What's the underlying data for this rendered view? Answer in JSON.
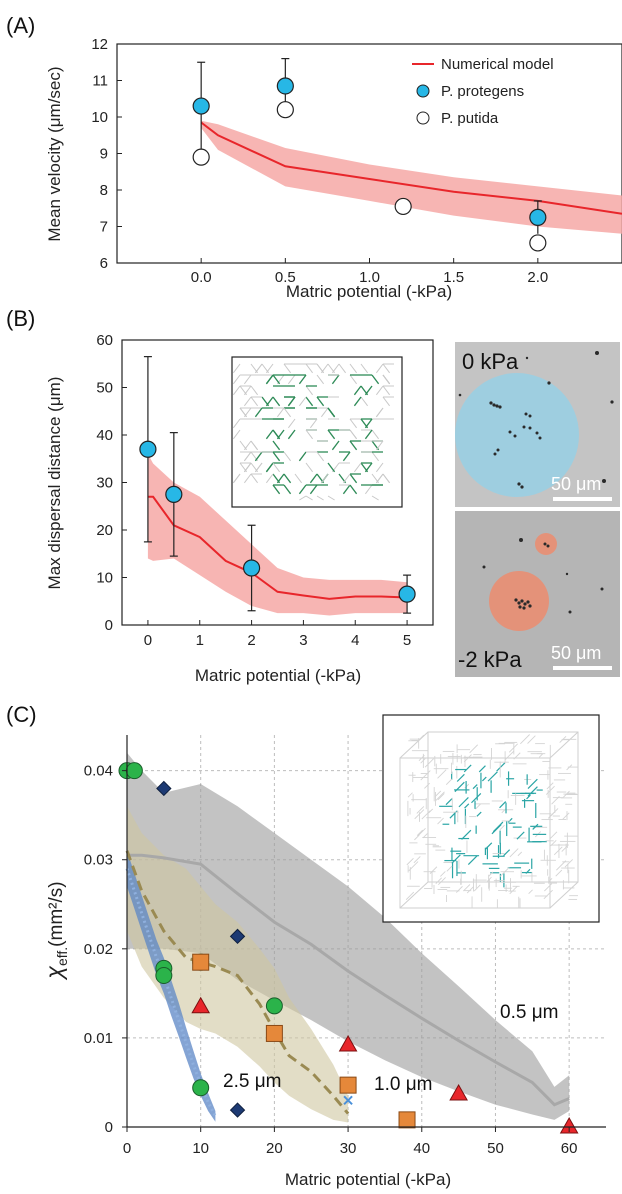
{
  "chart_data": [
    {
      "panel": "(A)",
      "type": "line",
      "xlabel": "Matric potential (-kPa)",
      "ylabel": "Mean velocity (μm/sec)",
      "xlim": [
        -0.5,
        2.5
      ],
      "ylim": [
        6,
        12
      ],
      "xticks": [
        "0.0",
        "0.5",
        "1.0",
        "1.5",
        "2.0"
      ],
      "yticks": [
        "6",
        "7",
        "8",
        "9",
        "10",
        "11",
        "12"
      ],
      "legend_position": "top-right",
      "legend": [
        "Numerical model",
        "P. protegens",
        "P. putida"
      ],
      "model": {
        "name": "Numerical model",
        "color": "#e8262b",
        "x": [
          0.0,
          0.1,
          0.5,
          1.0,
          1.5,
          2.0,
          2.5
        ],
        "y": [
          9.85,
          9.5,
          8.65,
          8.3,
          7.95,
          7.7,
          7.35
        ],
        "lower": [
          9.7,
          9.1,
          8.1,
          7.7,
          7.3,
          7.0,
          6.8
        ],
        "upper": [
          9.9,
          9.8,
          9.15,
          8.7,
          8.35,
          8.1,
          7.85
        ]
      },
      "series": [
        {
          "name": "P. protegens",
          "color": "#27b7e6",
          "x": [
            0.0,
            0.5,
            2.0
          ],
          "y": [
            10.3,
            10.85,
            7.25
          ],
          "err": [
            1.2,
            0.75,
            0.45
          ]
        },
        {
          "name": "P. putida",
          "color": "#ffffff",
          "x": [
            0.0,
            0.5,
            1.2,
            2.0
          ],
          "y": [
            8.9,
            10.2,
            7.55,
            6.55
          ]
        }
      ]
    },
    {
      "panel": "(B)",
      "type": "line",
      "xlabel": "Matric potential (-kPa)",
      "ylabel": "Max dispersal distance (μm)",
      "xlim": [
        -0.5,
        5.5
      ],
      "ylim": [
        0,
        60
      ],
      "xticks": [
        "0",
        "1",
        "2",
        "3",
        "4",
        "5"
      ],
      "yticks": [
        "0",
        "10",
        "20",
        "30",
        "40",
        "50",
        "60"
      ],
      "model": {
        "color": "#e8262b",
        "x": [
          0.0,
          0.1,
          0.5,
          1.0,
          1.5,
          2.0,
          2.5,
          3.0,
          3.5,
          4.0,
          4.5,
          5.0
        ],
        "y": [
          27,
          27,
          21,
          18.5,
          13.5,
          11,
          7,
          6.2,
          5.5,
          6,
          6,
          5.8
        ],
        "lower": [
          14,
          13.5,
          14,
          10.5,
          7,
          4,
          2.5,
          2.5,
          2,
          2.5,
          2.5,
          2.5
        ],
        "upper": [
          36,
          34,
          30,
          27,
          22,
          17,
          12,
          10,
          9.5,
          9.5,
          9.5,
          9
        ]
      },
      "series": [
        {
          "name": "data",
          "color": "#27b7e6",
          "x": [
            0,
            0.5,
            2,
            5
          ],
          "y": [
            37,
            27.5,
            12,
            6.5
          ],
          "err": [
            19.5,
            13,
            9,
            4
          ]
        }
      ],
      "images": [
        {
          "label": "0 kPa",
          "scale": "50 μm",
          "circle_color": "#8fd3ec"
        },
        {
          "label": "-2 kPa",
          "scale": "50 μm",
          "circle_color": "#f08a6a"
        }
      ]
    },
    {
      "panel": "(C)",
      "type": "line",
      "xlabel": "Matric potential (-kPa)",
      "ylabel": "χeff.(mm²/s)",
      "ylabel_main": "χ",
      "ylabel_sub": "eff.",
      "ylabel_rest": "(mm²/s)",
      "xlim": [
        0,
        65
      ],
      "ylim": [
        0,
        0.044
      ],
      "grid": true,
      "xticks": [
        "0",
        "10",
        "20",
        "30",
        "40",
        "50",
        "60"
      ],
      "yticks": [
        "0",
        "0.01",
        "0.02",
        "0.03",
        "0.04"
      ],
      "annotations": [
        "0.5 μm",
        "1.0 μm",
        "2.5 μm"
      ],
      "bands": [
        {
          "label": "0.5 μm",
          "color": "#9b9b9b",
          "line_color": "#a8a8a8",
          "x": [
            0,
            2,
            5,
            10,
            15,
            20,
            25,
            30,
            35,
            40,
            45,
            50,
            55,
            58,
            60
          ],
          "y": [
            0.0305,
            0.0305,
            0.0302,
            0.0295,
            0.0262,
            0.023,
            0.0205,
            0.0175,
            0.0148,
            0.0122,
            0.0097,
            0.0073,
            0.005,
            0.0025,
            0.0032
          ],
          "lower": [
            0.02,
            0.02,
            0.02,
            0.0195,
            0.0165,
            0.0142,
            0.012,
            0.0096,
            0.0075,
            0.0056,
            0.004,
            0.0025,
            0.0014,
            0.0008,
            0.0018
          ],
          "upper": [
            0.042,
            0.04,
            0.0375,
            0.0385,
            0.036,
            0.033,
            0.03,
            0.027,
            0.0235,
            0.0195,
            0.0158,
            0.012,
            0.0085,
            0.0045,
            0.0058
          ]
        },
        {
          "label": "1.0 μm",
          "color": "#cfc6a0",
          "line_color": "#9a8a52",
          "x": [
            0,
            2,
            5,
            8,
            10,
            12,
            15,
            18,
            20,
            22,
            25,
            28,
            30
          ],
          "y": [
            0.031,
            0.0265,
            0.022,
            0.019,
            0.0185,
            0.018,
            0.017,
            0.0138,
            0.0108,
            0.008,
            0.0062,
            0.0035,
            0.0015
          ],
          "lower": [
            0.022,
            0.018,
            0.0145,
            0.0118,
            0.011,
            0.0105,
            0.009,
            0.0068,
            0.005,
            0.0035,
            0.002,
            0.0008,
            0.0005
          ],
          "upper": [
            0.036,
            0.033,
            0.0305,
            0.029,
            0.027,
            0.025,
            0.023,
            0.02,
            0.0178,
            0.0145,
            0.011,
            0.007,
            0.0035
          ]
        },
        {
          "label": "2.5 μm",
          "color": "#5b86c6",
          "line_color": "#8fb0de",
          "x": [
            0,
            1,
            2,
            3,
            4,
            5,
            6,
            7,
            8,
            9,
            10,
            11,
            12
          ],
          "y": [
            0.029,
            0.0265,
            0.024,
            0.0215,
            0.019,
            0.017,
            0.0145,
            0.012,
            0.0095,
            0.007,
            0.0048,
            0.0028,
            0.0012
          ],
          "lower": [
            0.027,
            0.0245,
            0.022,
            0.0195,
            0.017,
            0.015,
            0.0125,
            0.0102,
            0.0078,
            0.0055,
            0.0035,
            0.0018,
            0.0006
          ],
          "upper": [
            0.031,
            0.0285,
            0.026,
            0.0235,
            0.021,
            0.019,
            0.0165,
            0.014,
            0.0112,
            0.0086,
            0.006,
            0.0038,
            0.0018
          ]
        }
      ],
      "series": [
        {
          "marker": "circle",
          "color": "#2bb34a",
          "x": [
            0,
            1,
            5,
            5,
            10,
            10,
            20
          ],
          "y": [
            0.04,
            0.04,
            0.0178,
            0.017,
            0.0185,
            0.0044,
            0.0136
          ]
        },
        {
          "marker": "diamond",
          "color": "#1d3a73",
          "x": [
            5,
            15,
            15
          ],
          "y": [
            0.038,
            0.0214,
            0.0019
          ]
        },
        {
          "marker": "square",
          "color": "#e5883a",
          "x": [
            10,
            20,
            30,
            38
          ],
          "y": [
            0.0185,
            0.0105,
            0.0047,
            0.0008
          ]
        },
        {
          "marker": "triangle",
          "color": "#e8262b",
          "x": [
            10,
            30,
            45,
            60
          ],
          "y": [
            0.0135,
            0.0092,
            0.0037,
            0.0
          ]
        },
        {
          "marker": "x",
          "color": "#4a90d9",
          "x": [
            30
          ],
          "y": [
            0.003
          ]
        }
      ]
    }
  ]
}
